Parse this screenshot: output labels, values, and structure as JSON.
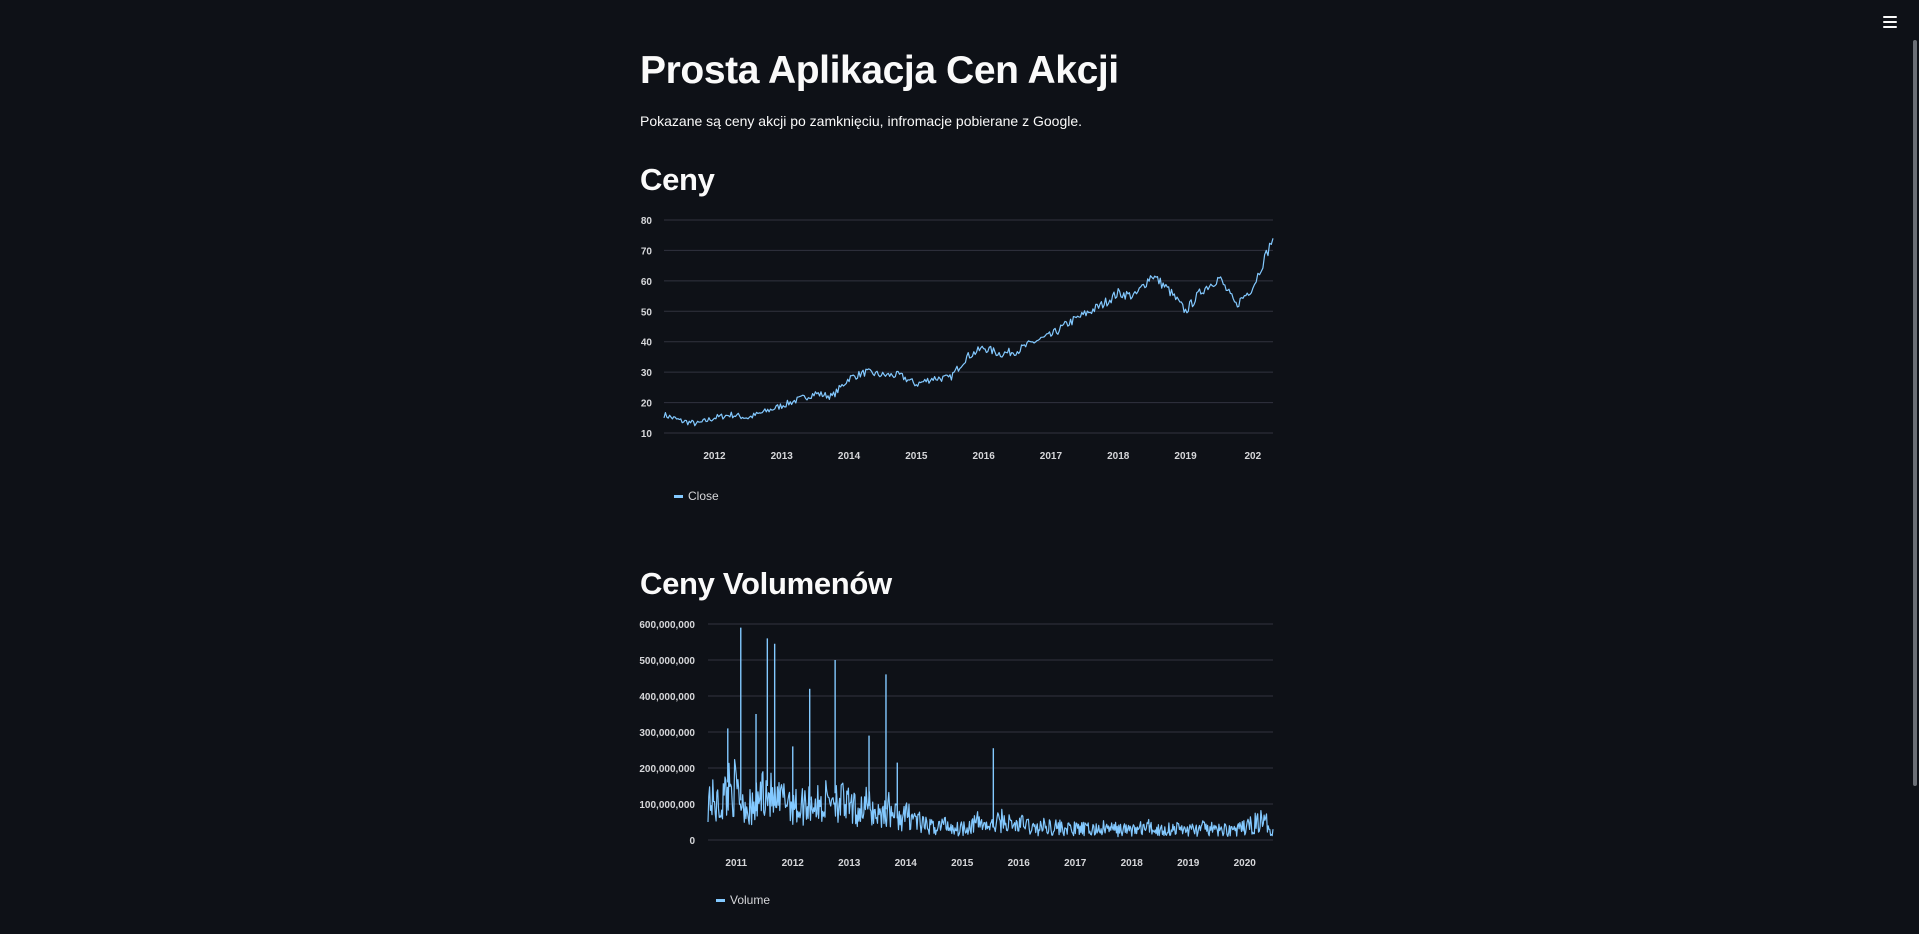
{
  "page": {
    "title": "Prosta Aplikacja Cen Akcji",
    "subtitle": "Pokazane są ceny akcji po zamknięciu, infromacje pobierane z Google.",
    "section_prices": "Ceny",
    "section_volume": "Ceny Volumenów"
  },
  "colors": {
    "background": "#0e1117",
    "line": "#83c9ff",
    "grid": "#31333f"
  },
  "icons": {
    "menu": "hamburger-menu-icon"
  },
  "chart_data": [
    {
      "type": "line",
      "title": "",
      "xlabel": "",
      "ylabel": "",
      "x_ticks": [
        "2012",
        "2013",
        "2014",
        "2015",
        "2016",
        "2017",
        "2018",
        "2019",
        "202"
      ],
      "y_ticks": [
        "10",
        "20",
        "30",
        "40",
        "50",
        "60",
        "70",
        "80"
      ],
      "xlim": [
        2011.25,
        2020.3
      ],
      "ylim": [
        10,
        80
      ],
      "grid": true,
      "legend": "bottom-left",
      "series": [
        {
          "name": "Close",
          "x": [
            2011.25,
            2011.5,
            2011.75,
            2012.0,
            2012.25,
            2012.5,
            2012.75,
            2013.0,
            2013.25,
            2013.5,
            2013.75,
            2014.0,
            2014.25,
            2014.5,
            2014.75,
            2015.0,
            2015.25,
            2015.5,
            2015.75,
            2016.0,
            2016.25,
            2016.5,
            2016.75,
            2017.0,
            2017.25,
            2017.5,
            2017.75,
            2018.0,
            2018.25,
            2018.5,
            2018.75,
            2019.0,
            2019.25,
            2019.5,
            2019.75,
            2020.0,
            2020.3
          ],
          "values": [
            16,
            14,
            13,
            15,
            16,
            15,
            17,
            19,
            21,
            23,
            22,
            28,
            30,
            29,
            29,
            26,
            28,
            28,
            35,
            38,
            36,
            37,
            40,
            42,
            46,
            49,
            52,
            56,
            55,
            62,
            57,
            50,
            57,
            61,
            52,
            58,
            74
          ]
        }
      ]
    },
    {
      "type": "line",
      "title": "",
      "xlabel": "",
      "ylabel": "",
      "x_ticks": [
        "2011",
        "2012",
        "2013",
        "2014",
        "2015",
        "2016",
        "2017",
        "2018",
        "2019",
        "2020"
      ],
      "y_ticks": [
        "0",
        "100,000,000",
        "200,000,000",
        "300,000,000",
        "400,000,000",
        "500,000,000",
        "600,000,000"
      ],
      "xlim": [
        2010.5,
        2020.5
      ],
      "ylim": [
        0,
        600000000
      ],
      "grid": true,
      "legend": "bottom-left",
      "series": [
        {
          "name": "Volume",
          "x": [
            2010.5,
            2010.7,
            2010.9,
            2011.1,
            2011.3,
            2011.5,
            2011.7,
            2011.9,
            2012.1,
            2012.3,
            2012.5,
            2012.7,
            2012.9,
            2013.1,
            2013.3,
            2013.5,
            2013.7,
            2013.9,
            2014.1,
            2014.3,
            2014.5,
            2014.7,
            2014.9,
            2015.1,
            2015.3,
            2015.5,
            2015.7,
            2015.9,
            2016.1,
            2016.3,
            2016.5,
            2016.7,
            2016.9,
            2017.1,
            2017.3,
            2017.5,
            2017.7,
            2017.9,
            2018.1,
            2018.3,
            2018.5,
            2018.7,
            2018.9,
            2019.1,
            2019.3,
            2019.5,
            2019.7,
            2019.9,
            2020.1,
            2020.3,
            2020.5
          ],
          "values": [
            120000000,
            90000000,
            160000000,
            110000000,
            80000000,
            150000000,
            95000000,
            120000000,
            85000000,
            110000000,
            90000000,
            130000000,
            100000000,
            80000000,
            95000000,
            70000000,
            85000000,
            60000000,
            70000000,
            40000000,
            35000000,
            45000000,
            30000000,
            40000000,
            50000000,
            35000000,
            55000000,
            40000000,
            45000000,
            30000000,
            40000000,
            35000000,
            30000000,
            30000000,
            28000000,
            32000000,
            30000000,
            28000000,
            30000000,
            35000000,
            27000000,
            32000000,
            30000000,
            28000000,
            33000000,
            26000000,
            30000000,
            28000000,
            40000000,
            55000000,
            30000000
          ]
        },
        {
          "name": "",
          "x": [
            2010.85,
            2011.08,
            2011.35,
            2011.55,
            2011.68,
            2012.0,
            2012.3,
            2012.75,
            2013.35,
            2013.65,
            2013.85,
            2015.55
          ],
          "values": [
            310000000,
            590000000,
            350000000,
            560000000,
            545000000,
            260000000,
            420000000,
            500000000,
            290000000,
            460000000,
            215000000,
            255000000
          ]
        }
      ]
    }
  ]
}
